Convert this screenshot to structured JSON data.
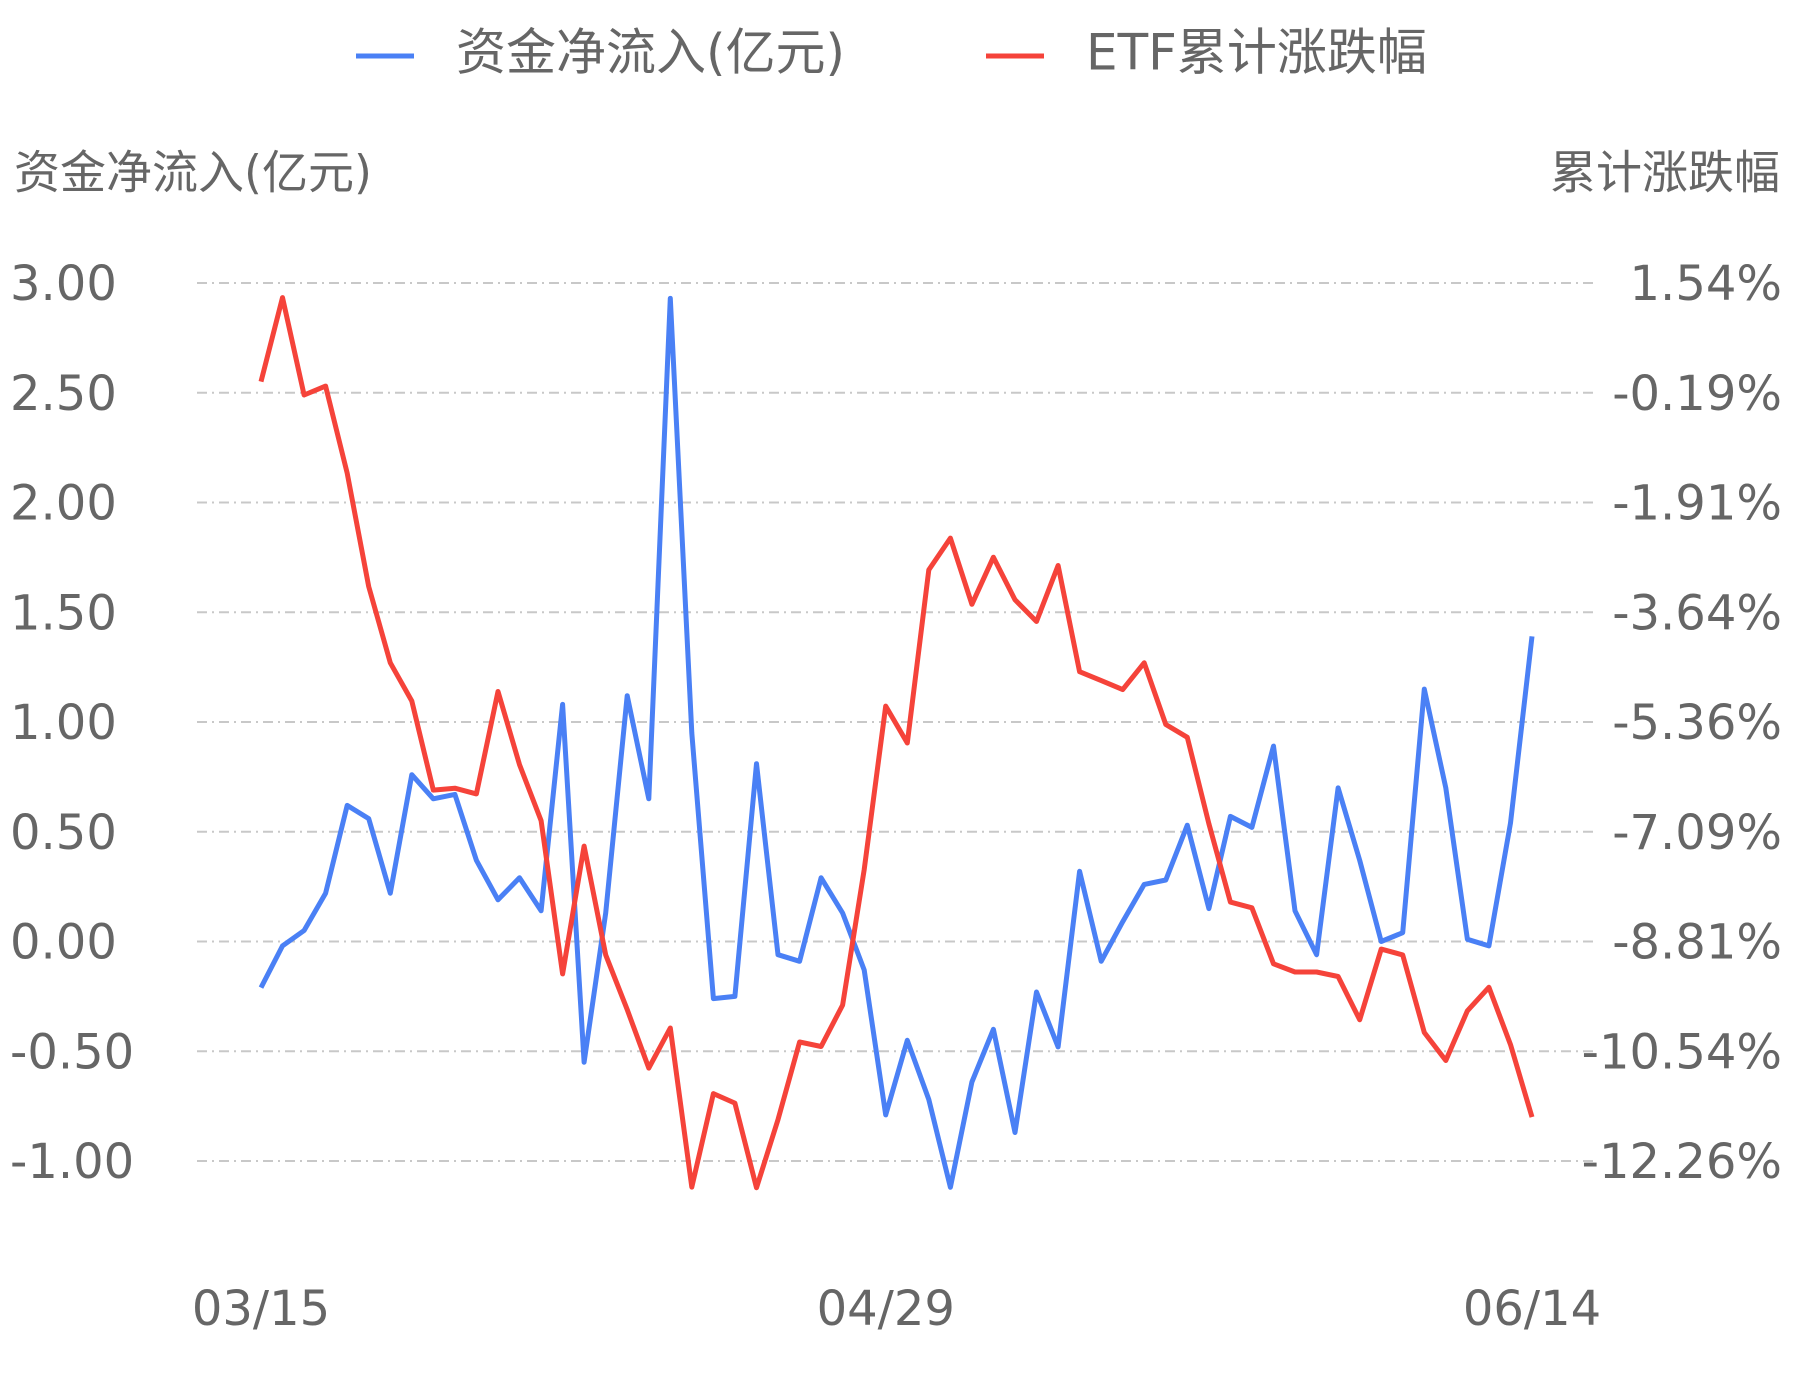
{
  "chart_data": {
    "type": "line",
    "y_label": "资金净流入(亿元)",
    "y2_label": "累计涨跌幅",
    "categories": [
      "03/15",
      null,
      null,
      null,
      null,
      null,
      null,
      null,
      null,
      null,
      null,
      null,
      null,
      null,
      null,
      null,
      null,
      null,
      null,
      null,
      null,
      null,
      null,
      null,
      null,
      null,
      null,
      null,
      null,
      "04/29",
      null,
      null,
      null,
      null,
      null,
      null,
      null,
      null,
      null,
      null,
      null,
      null,
      null,
      null,
      null,
      null,
      null,
      null,
      null,
      null,
      null,
      null,
      null,
      null,
      null,
      null,
      null,
      null,
      null,
      "06/14"
    ],
    "series": [
      {
        "name": "资金净流入(亿元)",
        "color": "#4a80f5",
        "axis": "y",
        "values": [
          -0.21,
          -0.02,
          0.05,
          0.22,
          0.62,
          0.56,
          0.22,
          0.76,
          0.65,
          0.67,
          0.37,
          0.19,
          0.29,
          0.14,
          1.08,
          -0.55,
          0.13,
          1.12,
          0.65,
          2.93,
          0.95,
          -0.26,
          -0.25,
          0.81,
          -0.06,
          -0.09,
          0.29,
          0.13,
          -0.13,
          -0.79,
          -0.45,
          -0.72,
          -1.12,
          -0.64,
          -0.4,
          -0.87,
          -0.23,
          -0.48,
          0.32,
          -0.09,
          0.09,
          0.26,
          0.28,
          0.53,
          0.15,
          0.57,
          0.52,
          0.89,
          0.14,
          -0.06,
          0.7,
          0.37,
          0.0,
          0.04,
          1.15,
          0.7,
          0.01,
          -0.02,
          0.54,
          1.39
        ]
      },
      {
        "name": "ETF累计涨跌幅",
        "color": "#f5433a",
        "axis": "y2",
        "values": [
          -0.01,
          1.31,
          -0.22,
          -0.08,
          -1.45,
          -3.23,
          -4.43,
          -5.03,
          -6.43,
          -6.4,
          -6.49,
          -4.88,
          -6.03,
          -6.91,
          -9.32,
          -7.31,
          -9.02,
          -9.88,
          -10.8,
          -10.17,
          -12.67,
          -11.2,
          -11.35,
          -12.68,
          -11.61,
          -10.39,
          -10.46,
          -9.81,
          -7.68,
          -5.11,
          -5.69,
          -2.97,
          -2.47,
          -3.51,
          -2.77,
          -3.44,
          -3.78,
          -2.9,
          -4.57,
          -4.71,
          -4.85,
          -4.43,
          -5.4,
          -5.6,
          -6.96,
          -8.19,
          -8.28,
          -9.16,
          -9.29,
          -9.29,
          -9.36,
          -10.04,
          -8.93,
          -9.02,
          -10.24,
          -10.68,
          -9.9,
          -9.53,
          -10.43,
          -11.57
        ]
      }
    ],
    "ylim": [
      -1,
      3
    ],
    "yticks": [
      {
        "value": 3,
        "label": "3.00"
      },
      {
        "value": 2.5,
        "label": "2.50"
      },
      {
        "value": 2,
        "label": "2.00"
      },
      {
        "value": 1.5,
        "label": "1.50"
      },
      {
        "value": 1,
        "label": "1.00"
      },
      {
        "value": 0.5,
        "label": "0.50"
      },
      {
        "value": 0,
        "label": "0.00"
      },
      {
        "value": -0.5,
        "label": "-0.50"
      },
      {
        "value": -1,
        "label": "-1.00"
      }
    ],
    "y2lim": [
      -12.26,
      1.54
    ],
    "y2ticks": [
      {
        "value": 1.54,
        "label": "1.54%"
      },
      {
        "value": -0.19,
        "label": "-0.19%"
      },
      {
        "value": -1.91,
        "label": "-1.91%"
      },
      {
        "value": -3.64,
        "label": "-3.64%"
      },
      {
        "value": -5.36,
        "label": "-5.36%"
      },
      {
        "value": -7.09,
        "label": "-7.09%"
      },
      {
        "value": -8.81,
        "label": "-8.81%"
      },
      {
        "value": -10.54,
        "label": "-10.54%"
      },
      {
        "value": -12.26,
        "label": "-12.26%"
      }
    ],
    "grid": true,
    "legend": "top"
  }
}
